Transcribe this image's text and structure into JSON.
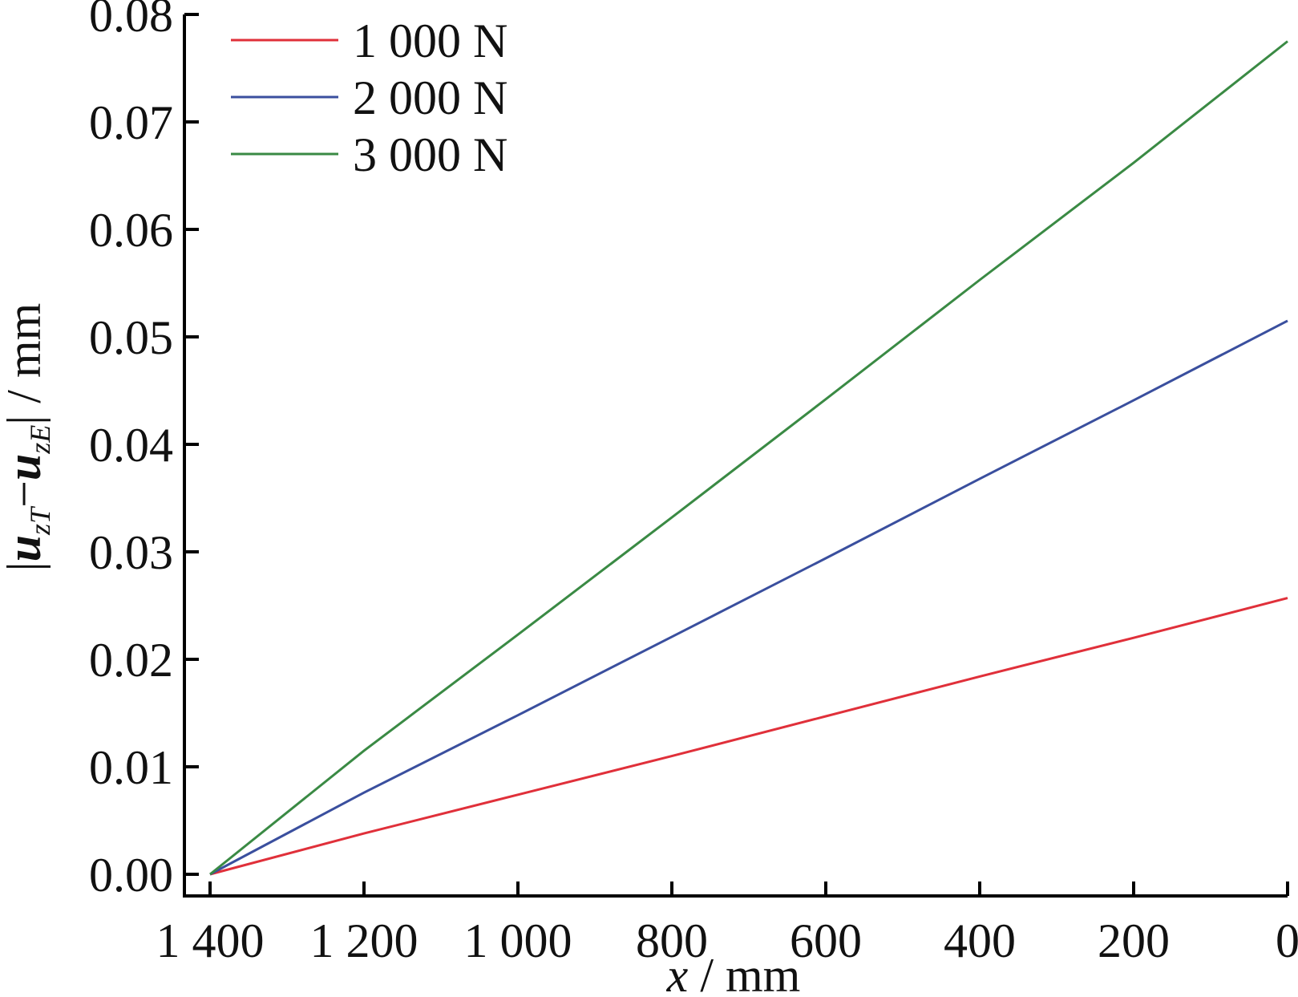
{
  "chart_data": {
    "type": "line",
    "title": "",
    "xlabel": {
      "var": "x",
      "unit": " / mm"
    },
    "ylabel": {
      "abs_open": "|",
      "u1": "u",
      "sub1": "zT",
      "minus": "−",
      "u2": "u",
      "sub2": "zE",
      "abs_close": "|",
      "unit": " / mm"
    },
    "x_reversed": true,
    "xlim": [
      1400,
      0
    ],
    "ylim": [
      0,
      0.08
    ],
    "xticks": [
      {
        "value": 1400,
        "label": "1 400"
      },
      {
        "value": 1200,
        "label": "1 200"
      },
      {
        "value": 1000,
        "label": "1 000"
      },
      {
        "value": 800,
        "label": "800"
      },
      {
        "value": 600,
        "label": "600"
      },
      {
        "value": 400,
        "label": "400"
      },
      {
        "value": 200,
        "label": "200"
      },
      {
        "value": 0,
        "label": "0"
      }
    ],
    "yticks": [
      {
        "value": 0.0,
        "label": "0.00"
      },
      {
        "value": 0.01,
        "label": "0.01"
      },
      {
        "value": 0.02,
        "label": "0.02"
      },
      {
        "value": 0.03,
        "label": "0.03"
      },
      {
        "value": 0.04,
        "label": "0.04"
      },
      {
        "value": 0.05,
        "label": "0.05"
      },
      {
        "value": 0.06,
        "label": "0.06"
      },
      {
        "value": 0.07,
        "label": "0.07"
      },
      {
        "value": 0.08,
        "label": "0.08"
      }
    ],
    "grid": false,
    "legend_position": "top-left",
    "x": [
      1400,
      1200,
      1000,
      800,
      600,
      400,
      200,
      0
    ],
    "series": [
      {
        "name": "1 000 N",
        "color": "#e0303a",
        "values": [
          0.0,
          0.0038,
          0.0074,
          0.011,
          0.0147,
          0.0184,
          0.022,
          0.0257
        ]
      },
      {
        "name": "2 000 N",
        "color": "#3a4f9e",
        "values": [
          0.0,
          0.0076,
          0.0148,
          0.0221,
          0.0294,
          0.0368,
          0.0441,
          0.0515
        ]
      },
      {
        "name": "3 000 N",
        "color": "#3a8a44",
        "values": [
          0.0,
          0.0115,
          0.0223,
          0.0332,
          0.0442,
          0.0553,
          0.0662,
          0.0775
        ]
      }
    ]
  }
}
